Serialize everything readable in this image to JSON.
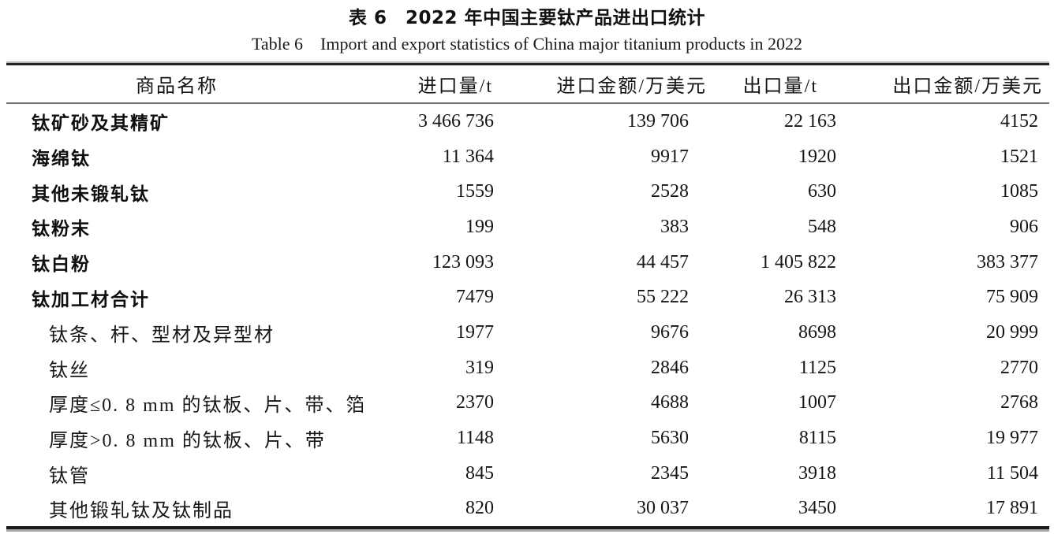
{
  "caption": {
    "chinese": "表 6 2022 年中国主要钛产品进出口统计",
    "english": "Table 6 Import and export statistics of China major titanium products in 2022"
  },
  "table": {
    "headers": [
      "商品名称",
      "进口量/t",
      "进口金额/万美元",
      "出口量/t",
      "出口金额/万美元"
    ],
    "rows": [
      {
        "name": "钛矿砂及其精矿",
        "style": "category",
        "import_qty": "3 466 736",
        "import_value": "139 706",
        "export_qty": "22 163",
        "export_value": "4152"
      },
      {
        "name": "海绵钛",
        "style": "category",
        "import_qty": "11 364",
        "import_value": "9917",
        "export_qty": "1920",
        "export_value": "1521"
      },
      {
        "name": "其他未锻轧钛",
        "style": "category",
        "import_qty": "1559",
        "import_value": "2528",
        "export_qty": "630",
        "export_value": "1085"
      },
      {
        "name": "钛粉末",
        "style": "category",
        "import_qty": "199",
        "import_value": "383",
        "export_qty": "548",
        "export_value": "906"
      },
      {
        "name": "钛白粉",
        "style": "category",
        "import_qty": "123 093",
        "import_value": "44 457",
        "export_qty": "1 405 822",
        "export_value": "383 377"
      },
      {
        "name": "钛加工材合计",
        "style": "category",
        "import_qty": "7479",
        "import_value": "55 222",
        "export_qty": "26 313",
        "export_value": "75 909"
      },
      {
        "name": "钛条、杆、型材及异型材",
        "style": "sub",
        "import_qty": "1977",
        "import_value": "9676",
        "export_qty": "8698",
        "export_value": "20 999"
      },
      {
        "name": "钛丝",
        "style": "sub",
        "import_qty": "319",
        "import_value": "2846",
        "export_qty": "1125",
        "export_value": "2770"
      },
      {
        "name": "厚度≤0. 8 mm 的钛板、片、带、箔",
        "style": "sub",
        "import_qty": "2370",
        "import_value": "4688",
        "export_qty": "1007",
        "export_value": "2768"
      },
      {
        "name": "厚度>0. 8 mm 的钛板、片、带",
        "style": "sub",
        "import_qty": "1148",
        "import_value": "5630",
        "export_qty": "8115",
        "export_value": "19 977"
      },
      {
        "name": "钛管",
        "style": "sub",
        "import_qty": "845",
        "import_value": "2345",
        "export_qty": "3918",
        "export_value": "11 504"
      },
      {
        "name": "其他锻轧钛及钛制品",
        "style": "sub",
        "import_qty": "820",
        "import_value": "30 037",
        "export_qty": "3450",
        "export_value": "17 891"
      }
    ]
  }
}
